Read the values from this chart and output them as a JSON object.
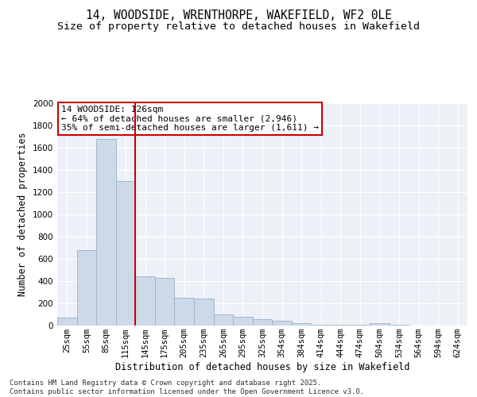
{
  "title_line1": "14, WOODSIDE, WRENTHORPE, WAKEFIELD, WF2 0LE",
  "title_line2": "Size of property relative to detached houses in Wakefield",
  "xlabel": "Distribution of detached houses by size in Wakefield",
  "ylabel": "Number of detached properties",
  "categories": [
    "25sqm",
    "55sqm",
    "85sqm",
    "115sqm",
    "145sqm",
    "175sqm",
    "205sqm",
    "235sqm",
    "265sqm",
    "295sqm",
    "325sqm",
    "354sqm",
    "384sqm",
    "414sqm",
    "444sqm",
    "474sqm",
    "504sqm",
    "534sqm",
    "564sqm",
    "594sqm",
    "624sqm"
  ],
  "values": [
    70,
    680,
    1680,
    1300,
    440,
    430,
    250,
    240,
    100,
    80,
    55,
    40,
    20,
    10,
    10,
    5,
    25,
    5,
    2,
    2,
    2
  ],
  "bar_color": "#ccd9e8",
  "bar_edgecolor": "#9ab0c8",
  "vline_x_index": 3,
  "vline_color": "#cc0000",
  "annotation_text": "14 WOODSIDE: 126sqm\n← 64% of detached houses are smaller (2,946)\n35% of semi-detached houses are larger (1,611) →",
  "annotation_box_color": "#ffffff",
  "annotation_box_edgecolor": "#cc0000",
  "ylim": [
    0,
    2000
  ],
  "yticks": [
    0,
    200,
    400,
    600,
    800,
    1000,
    1200,
    1400,
    1600,
    1800,
    2000
  ],
  "plot_bg_color": "#edf1f7",
  "footer_text": "Contains HM Land Registry data © Crown copyright and database right 2025.\nContains public sector information licensed under the Open Government Licence v3.0.",
  "title_fontsize": 10.5,
  "subtitle_fontsize": 9.5,
  "axis_label_fontsize": 8.5,
  "tick_fontsize": 7.5,
  "annotation_fontsize": 8,
  "footer_fontsize": 6.5
}
